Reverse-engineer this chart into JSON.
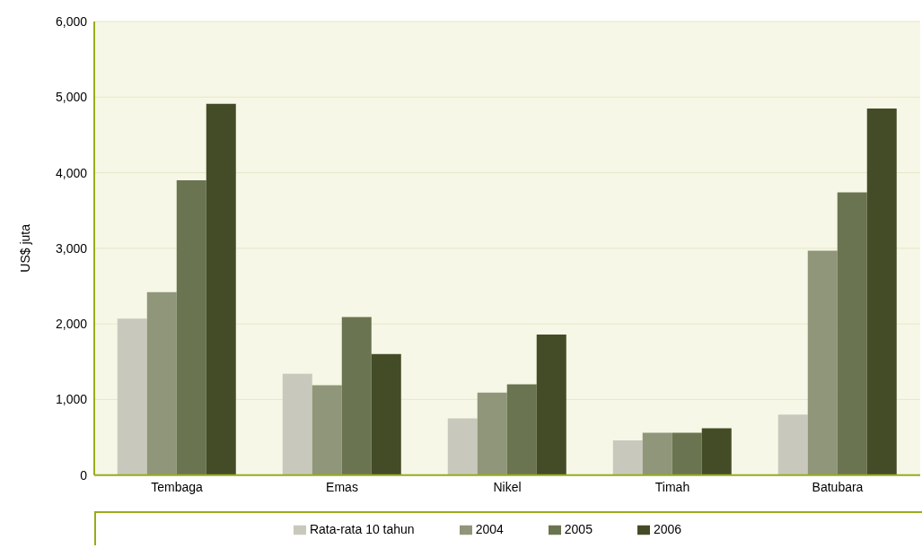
{
  "chart_data": {
    "type": "bar",
    "ylabel": "US$ juta",
    "categories": [
      "Tembaga",
      "Emas",
      "Nikel",
      "Timah",
      "Batubara"
    ],
    "series": [
      {
        "name": "Rata-rata 10 tahun",
        "color": "#c8c9bc",
        "values": [
          2070,
          1340,
          750,
          460,
          800
        ]
      },
      {
        "name": "2004",
        "color": "#8f9679",
        "values": [
          2420,
          1190,
          1090,
          560,
          2970
        ]
      },
      {
        "name": "2005",
        "color": "#6b7450",
        "values": [
          3900,
          2090,
          1200,
          560,
          3740
        ]
      },
      {
        "name": "2006",
        "color": "#434c27",
        "values": [
          4910,
          1600,
          1860,
          620,
          4850
        ]
      }
    ],
    "ylim": [
      0,
      6000
    ],
    "yticks": [
      0,
      {
        "value": 1000,
        "label": "1,000"
      },
      {
        "value": 2000,
        "label": "2,000"
      },
      {
        "value": 3000,
        "label": "3,000"
      },
      {
        "value": 4000,
        "label": "4,000"
      },
      {
        "value": 5000,
        "label": "5,000"
      },
      {
        "value": 6000,
        "label": "6,000"
      }
    ],
    "grid": "y",
    "legend": "bottom"
  }
}
